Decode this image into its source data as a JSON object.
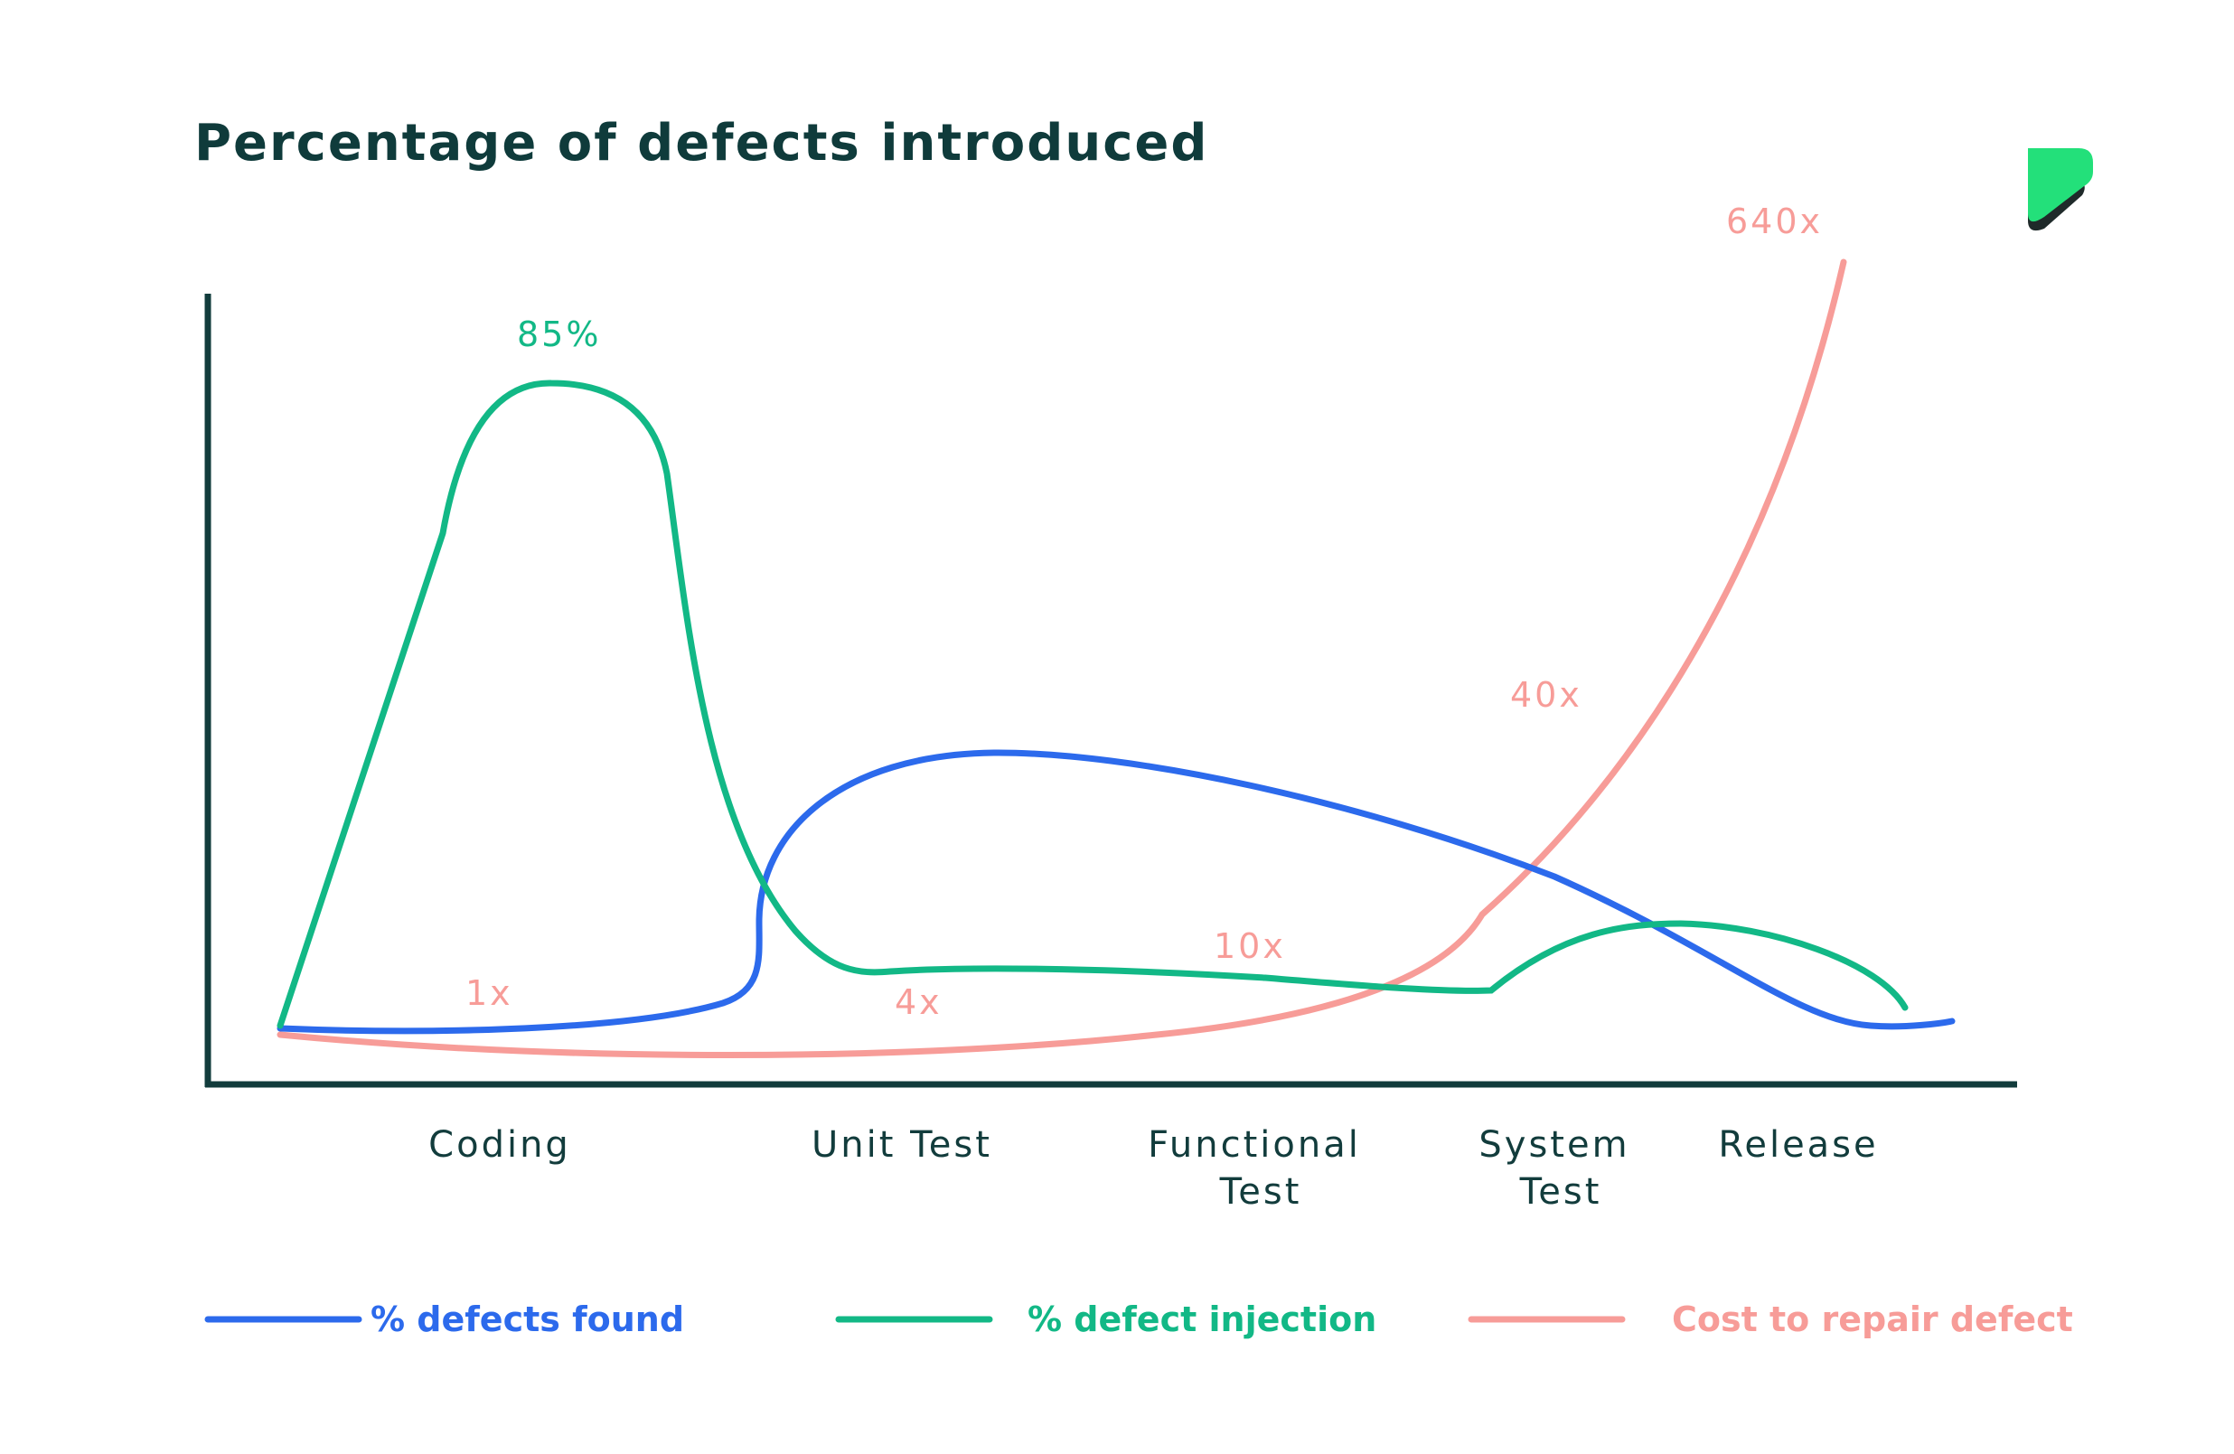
{
  "colors": {
    "found": "#2c6aec",
    "injection": "#12b886",
    "cost": "#f79c98",
    "axis": "#123c3c",
    "title": "#0f3b3b",
    "logo_light": "#23e07a",
    "logo_dark": "#1f2a2a"
  },
  "logo_icon": "brand-logo-icon",
  "chart_data": {
    "type": "line",
    "title": "Percentage of defects introduced",
    "xlabel": "",
    "ylabel": "",
    "categories": [
      {
        "lines": [
          "Coding"
        ]
      },
      {
        "lines": [
          "Unit Test"
        ]
      },
      {
        "lines": [
          "Functional",
          "Test"
        ]
      },
      {
        "lines": [
          "System",
          "Test"
        ]
      },
      {
        "lines": [
          "Release"
        ]
      }
    ],
    "grid": false,
    "legend_position": "bottom",
    "series": [
      {
        "key": "found",
        "name": "% defects found"
      },
      {
        "key": "injection",
        "name": "% defect injection",
        "peak_label": "85%"
      },
      {
        "key": "cost",
        "name": "Cost to repair defect",
        "point_labels": [
          "1x",
          "4x",
          "10x",
          "40x",
          "640x"
        ]
      }
    ]
  }
}
